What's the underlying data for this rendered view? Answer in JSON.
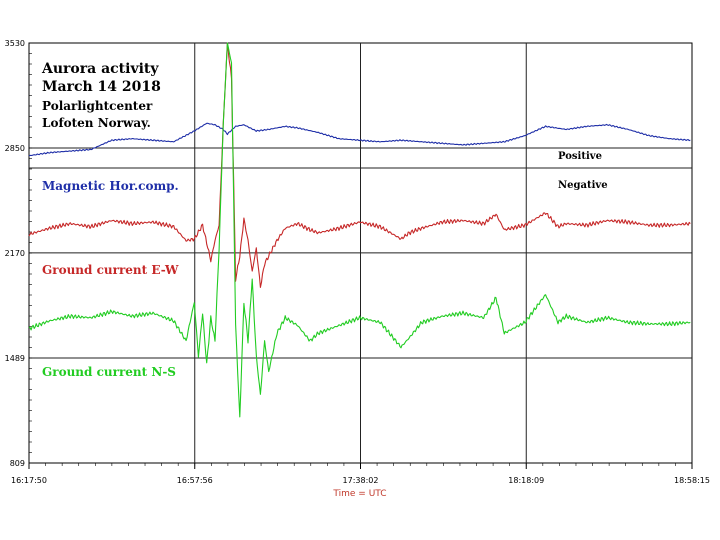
{
  "chart_data": {
    "type": "line",
    "title_lines": [
      "Aurora activity",
      "March 14 2018"
    ],
    "subtitle_lines": [
      "Polarlightcenter",
      "Lofoten Norway."
    ],
    "xlabel": "Time = UTC",
    "x_ticks": [
      "16:17:50",
      "16:57:56",
      "17:38:02",
      "18:18:09",
      "18:58:15"
    ],
    "y_ticks": [
      3530,
      2850,
      2170,
      1489,
      809
    ],
    "ylim": [
      809,
      3530
    ],
    "x_range_minutes": [
      0,
      160.42
    ],
    "annotations": [
      "Positive",
      "Negative"
    ],
    "reference_lines": [
      2850,
      2720,
      2170,
      1489
    ],
    "grid": true,
    "series": [
      {
        "name": "Magnetic Hor.comp.",
        "color": "#1f2fa8",
        "x": [
          0,
          5,
          10,
          15,
          20,
          25,
          30,
          35,
          40,
          43,
          45,
          47,
          48,
          50,
          52,
          55,
          58,
          62,
          65,
          70,
          75,
          80,
          85,
          90,
          95,
          100,
          105,
          110,
          115,
          120,
          125,
          130,
          135,
          140,
          145,
          150,
          155,
          160
        ],
        "values": [
          2800,
          2820,
          2830,
          2840,
          2900,
          2910,
          2900,
          2890,
          2960,
          3010,
          3000,
          2970,
          2940,
          2990,
          3000,
          2960,
          2970,
          2990,
          2980,
          2950,
          2910,
          2900,
          2890,
          2900,
          2890,
          2880,
          2870,
          2880,
          2890,
          2930,
          2990,
          2970,
          2990,
          3000,
          2970,
          2930,
          2910,
          2900
        ]
      },
      {
        "name": "Ground current E-W",
        "color": "#c62828",
        "x": [
          0,
          5,
          10,
          15,
          20,
          25,
          30,
          35,
          38,
          40,
          42,
          44,
          45,
          46,
          47,
          48,
          49,
          50,
          51,
          52,
          53,
          54,
          55,
          56,
          57,
          58,
          60,
          62,
          65,
          68,
          70,
          75,
          80,
          85,
          90,
          92,
          95,
          100,
          105,
          110,
          113,
          115,
          120,
          125,
          128,
          130,
          135,
          140,
          145,
          150,
          155,
          160
        ],
        "values": [
          2290,
          2330,
          2360,
          2340,
          2380,
          2360,
          2370,
          2340,
          2250,
          2260,
          2350,
          2120,
          2250,
          2350,
          3000,
          3530,
          3300,
          2000,
          2150,
          2390,
          2250,
          2050,
          2200,
          1950,
          2100,
          2150,
          2250,
          2330,
          2360,
          2320,
          2300,
          2330,
          2370,
          2340,
          2260,
          2300,
          2330,
          2370,
          2380,
          2360,
          2420,
          2320,
          2350,
          2430,
          2340,
          2360,
          2350,
          2380,
          2370,
          2350,
          2350,
          2360
        ]
      },
      {
        "name": "Ground current N-S",
        "color": "#22cc22",
        "x": [
          0,
          5,
          10,
          15,
          20,
          25,
          30,
          35,
          38,
          40,
          41,
          42,
          43,
          44,
          45,
          46,
          47,
          48,
          49,
          50,
          51,
          52,
          53,
          54,
          55,
          56,
          57,
          58,
          60,
          62,
          65,
          68,
          70,
          75,
          80,
          85,
          90,
          92,
          95,
          100,
          105,
          110,
          113,
          115,
          120,
          125,
          128,
          130,
          135,
          140,
          145,
          150,
          155,
          160
        ],
        "values": [
          1680,
          1730,
          1760,
          1750,
          1790,
          1760,
          1780,
          1730,
          1600,
          1850,
          1500,
          1780,
          1450,
          1750,
          1600,
          2200,
          3000,
          3530,
          3400,
          1700,
          1100,
          1850,
          1600,
          2000,
          1500,
          1250,
          1600,
          1400,
          1650,
          1750,
          1700,
          1600,
          1650,
          1700,
          1750,
          1720,
          1560,
          1620,
          1720,
          1760,
          1780,
          1750,
          1880,
          1650,
          1720,
          1900,
          1720,
          1760,
          1720,
          1750,
          1720,
          1710,
          1710,
          1720
        ]
      }
    ]
  }
}
